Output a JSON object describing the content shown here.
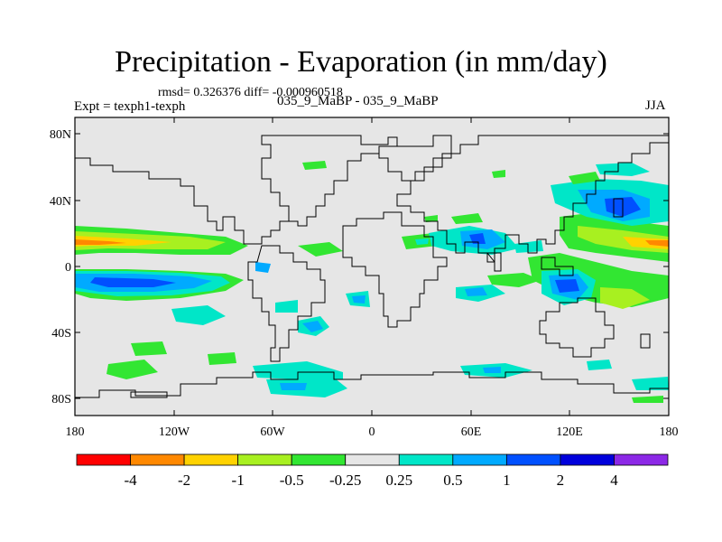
{
  "title": "Precipitation - Evaporation (in mm/day)",
  "stats": "rmsd= 0.326376 diff= -0.000960518",
  "expt": "Expt = texph1-texph",
  "case": "035_9_MaBP - 035_9_MaBP",
  "season": "JJA",
  "lat_labels": [
    "80N",
    "40N",
    "0",
    "40S",
    "80S"
  ],
  "lon_labels": [
    "180",
    "120W",
    "60W",
    "0",
    "60E",
    "120E",
    "180"
  ],
  "colorbar": {
    "colors": [
      "#ff0000",
      "#ff8800",
      "#ffd200",
      "#a8f020",
      "#32e632",
      "#e6e6e6",
      "#00e6c8",
      "#00aaff",
      "#0050ff",
      "#0000dc",
      "#8c28e6"
    ],
    "labels": [
      "-4",
      "-2",
      "-1",
      "-0.5",
      "-0.25",
      "0.25",
      "0.5",
      "1",
      "2",
      "4"
    ]
  }
}
